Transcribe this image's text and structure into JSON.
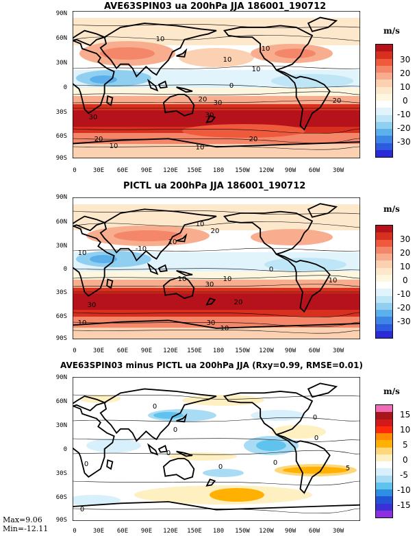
{
  "panels": [
    {
      "title": "AVE63SPIN03 ua 200hPa JJA 186001_190712",
      "unit": "m/s",
      "colorbar_labels": [
        "30",
        "20",
        "10",
        "0",
        "-10",
        "-20",
        "-30"
      ],
      "colorbar_colors": [
        "#b5121b",
        "#d7301f",
        "#ef5a3c",
        "#f4866a",
        "#f8ad8e",
        "#fbd1b1",
        "#fde8cc",
        "#fff6e0",
        "#ffffff",
        "#e1f3fb",
        "#bfe6f7",
        "#91cff1",
        "#5bb0ec",
        "#3d86e6",
        "#2d5be0",
        "#2a2ad8"
      ],
      "contour_labels": [
        "10",
        "10",
        "10",
        "10",
        "20",
        "30",
        "30",
        "20",
        "30",
        "20",
        "20",
        "10",
        "10",
        "0"
      ]
    },
    {
      "title": "PICTL ua 200hPa JJA 186001_190712",
      "unit": "m/s",
      "colorbar_labels": [
        "30",
        "20",
        "10",
        "0",
        "-10",
        "-20",
        "-30"
      ],
      "colorbar_colors": [
        "#b5121b",
        "#d7301f",
        "#ef5a3c",
        "#f4866a",
        "#f8ad8e",
        "#fbd1b1",
        "#fde8cc",
        "#fff6e0",
        "#ffffff",
        "#e1f3fb",
        "#bfe6f7",
        "#91cff1",
        "#5bb0ec",
        "#3d86e6",
        "#2d5be0",
        "#2a2ad8"
      ],
      "contour_labels": [
        "10",
        "20",
        "10",
        "10",
        "-10",
        "0",
        "10",
        "30",
        "10",
        "30",
        "20",
        "30",
        "10",
        "10",
        "10"
      ]
    },
    {
      "title": "AVE63SPIN03 minus PICTL ua 200hPa JJA (Rxy=0.99, RMSE=0.01)",
      "unit": "m/s",
      "colorbar_labels": [
        "15",
        "10",
        "5",
        "0",
        "-5",
        "-10",
        "-15"
      ],
      "colorbar_colors": [
        "#f06bb5",
        "#a8161a",
        "#d21a1a",
        "#ff2a0a",
        "#ff8c00",
        "#ffb000",
        "#ffd77a",
        "#fff0c2",
        "#ffffff",
        "#d8f0fb",
        "#a8dcf4",
        "#5fc3ee",
        "#2d8fe4",
        "#2255d6",
        "#3c2fd6",
        "#8d2ee0"
      ],
      "contour_labels": [
        "0",
        "0",
        "0",
        "0",
        "0",
        "0",
        "5",
        "0",
        "0",
        "0"
      ]
    }
  ],
  "lat_labels": [
    "90N",
    "60N",
    "30N",
    "0",
    "30S",
    "60S",
    "90S"
  ],
  "lon_labels": [
    "0",
    "30E",
    "60E",
    "90E",
    "120E",
    "150E",
    "180",
    "150W",
    "120W",
    "90W",
    "60W",
    "30W"
  ],
  "stats": {
    "max": "Max=9.06",
    "min": "Min=-12.11"
  }
}
